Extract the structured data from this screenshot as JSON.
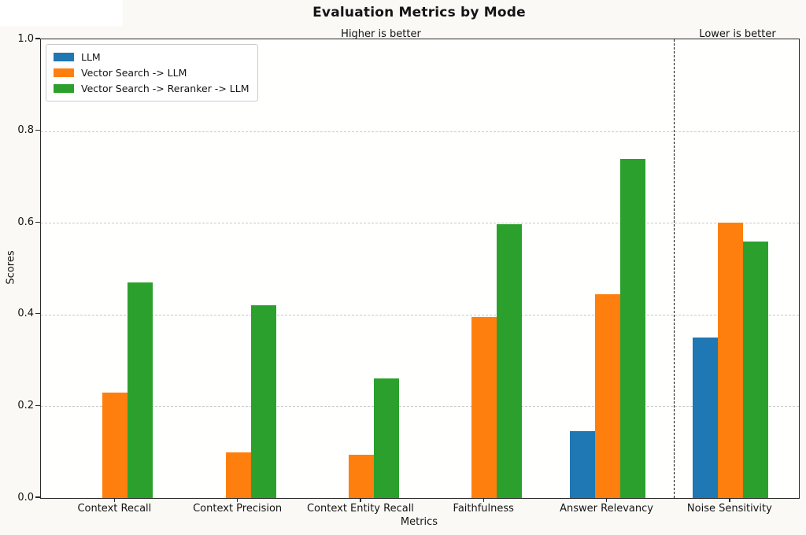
{
  "chart_data": {
    "type": "bar",
    "title": "Evaluation Metrics by Mode",
    "xlabel": "Metrics",
    "ylabel": "Scores",
    "categories": [
      "Context Recall",
      "Context Precision",
      "Context Entity Recall",
      "Faithfulness",
      "Answer Relevancy",
      "Noise Sensitivity"
    ],
    "series": [
      {
        "name": "LLM",
        "color": "#1f77b4",
        "values": [
          0,
          0,
          0,
          0,
          0.145,
          0.35
        ]
      },
      {
        "name": "Vector Search -> LLM",
        "color": "#ff7f0e",
        "values": [
          0.23,
          0.1,
          0.095,
          0.395,
          0.445,
          0.6
        ]
      },
      {
        "name": "Vector Search -> Reranker -> LLM",
        "color": "#2ca02c",
        "values": [
          0.47,
          0.42,
          0.26,
          0.597,
          0.74,
          0.56
        ]
      }
    ],
    "ylim": [
      0,
      1
    ],
    "yticks": [
      0.0,
      0.2,
      0.4,
      0.6,
      0.8,
      1.0
    ],
    "ytick_labels": [
      "0.0",
      "0.2",
      "0.4",
      "0.6",
      "0.8",
      "1.0"
    ],
    "grid": "horizontal dashed gridlines at yticks",
    "legend_position": "upper left",
    "annotations": [
      {
        "text": "Higher is better",
        "region": "left of separator"
      },
      {
        "text": "Lower is better",
        "region": "right of separator"
      }
    ],
    "separator": {
      "style": "vertical dashed black line",
      "between": [
        "Answer Relevancy",
        "Noise Sensitivity"
      ]
    }
  }
}
